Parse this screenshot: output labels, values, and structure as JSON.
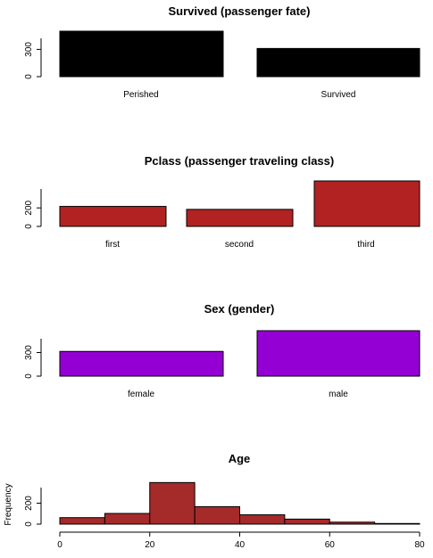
{
  "chart_data": [
    {
      "type": "bar",
      "title": "Survived (passenger fate)",
      "categories": [
        "Perished",
        "Survived"
      ],
      "values": [
        500,
        310
      ],
      "yticks": [
        "0",
        "300"
      ],
      "ylim": [
        0,
        500
      ],
      "color": "#000000",
      "xlabel": "",
      "ylabel": ""
    },
    {
      "type": "bar",
      "title": "Pclass (passenger traveling class)",
      "categories": [
        "first",
        "second",
        "third"
      ],
      "values": [
        216,
        184,
        491
      ],
      "yticks": [
        "0",
        "200"
      ],
      "ylim": [
        0,
        491
      ],
      "color": "#b22222",
      "xlabel": "",
      "ylabel": ""
    },
    {
      "type": "bar",
      "title": "Sex (gender)",
      "categories": [
        "female",
        "male"
      ],
      "values": [
        314,
        577
      ],
      "yticks": [
        "0",
        "300"
      ],
      "ylim": [
        0,
        577
      ],
      "color": "#9400d3",
      "xlabel": "",
      "ylabel": ""
    },
    {
      "type": "histogram",
      "title": "Age",
      "bins": [
        0,
        10,
        20,
        30,
        40,
        50,
        60,
        70,
        80
      ],
      "values": [
        62,
        102,
        397,
        167,
        89,
        48,
        19,
        6
      ],
      "xticks": [
        "0",
        "20",
        "40",
        "60",
        "80"
      ],
      "xlim": [
        0,
        80
      ],
      "yticks": [
        "0",
        "200"
      ],
      "ylim": [
        0,
        400
      ],
      "color": "#a52a2a",
      "xlabel": "",
      "ylabel": "Frequency"
    }
  ]
}
